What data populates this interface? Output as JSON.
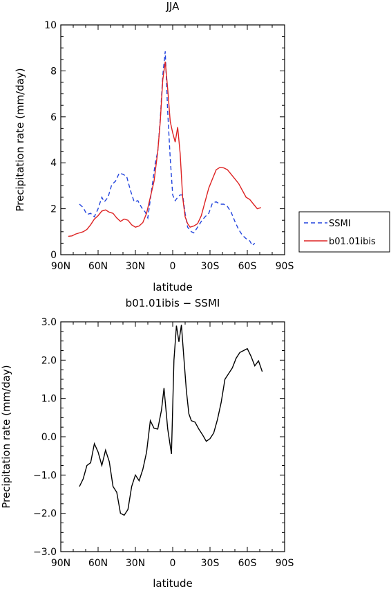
{
  "chart_data": [
    {
      "type": "line",
      "title": "JJA",
      "xlabel": "latitude",
      "ylabel": "Precipitation rate (mm/day)",
      "xlim": [
        90,
        -90
      ],
      "ylim": [
        0,
        10
      ],
      "xticks": [
        90,
        60,
        30,
        0,
        -30,
        -60,
        -90
      ],
      "xticklabels": [
        "90N",
        "60N",
        "30N",
        "0",
        "30S",
        "60S",
        "90S"
      ],
      "yticks": [
        0,
        2,
        4,
        6,
        8,
        10
      ],
      "yticklabels": [
        "0",
        "2",
        "4",
        "6",
        "8",
        "10"
      ],
      "grid": false,
      "legend": "right",
      "series": [
        {
          "name": "SSMI",
          "color": "#2244dd",
          "dash": "dashed",
          "points": [
            [
              75,
              2.2
            ],
            [
              72,
              2.05
            ],
            [
              69,
              1.75
            ],
            [
              66,
              1.8
            ],
            [
              63,
              1.65
            ],
            [
              60,
              2.0
            ],
            [
              57,
              2.5
            ],
            [
              55,
              2.3
            ],
            [
              52,
              2.5
            ],
            [
              49,
              3.05
            ],
            [
              46,
              3.2
            ],
            [
              43,
              3.55
            ],
            [
              40,
              3.5
            ],
            [
              37,
              3.4
            ],
            [
              34,
              2.8
            ],
            [
              31,
              2.3
            ],
            [
              28,
              2.35
            ],
            [
              25,
              2.05
            ],
            [
              22,
              1.85
            ],
            [
              20,
              1.6
            ],
            [
              17,
              2.8
            ],
            [
              14,
              4.0
            ],
            [
              12,
              4.5
            ],
            [
              10,
              5.9
            ],
            [
              8,
              7.8
            ],
            [
              6,
              8.85
            ],
            [
              4,
              6.2
            ],
            [
              2,
              4.2
            ],
            [
              0,
              2.6
            ],
            [
              -2,
              2.35
            ],
            [
              -4,
              2.5
            ],
            [
              -6,
              2.6
            ],
            [
              -8,
              2.6
            ],
            [
              -10,
              1.8
            ],
            [
              -12,
              1.2
            ],
            [
              -15,
              1.0
            ],
            [
              -17,
              0.95
            ],
            [
              -20,
              1.2
            ],
            [
              -23,
              1.45
            ],
            [
              -26,
              1.65
            ],
            [
              -29,
              1.8
            ],
            [
              -32,
              2.25
            ],
            [
              -35,
              2.3
            ],
            [
              -38,
              2.2
            ],
            [
              -41,
              2.2
            ],
            [
              -44,
              2.1
            ],
            [
              -47,
              1.85
            ],
            [
              -50,
              1.45
            ],
            [
              -53,
              1.1
            ],
            [
              -56,
              0.85
            ],
            [
              -59,
              0.7
            ],
            [
              -62,
              0.6
            ],
            [
              -64,
              0.4
            ],
            [
              -66,
              0.5
            ]
          ]
        },
        {
          "name": "b01.01ibis",
          "color": "#dd2222",
          "dash": "solid",
          "points": [
            [
              84,
              0.8
            ],
            [
              81,
              0.82
            ],
            [
              78,
              0.9
            ],
            [
              75,
              0.95
            ],
            [
              72,
              1.0
            ],
            [
              69,
              1.1
            ],
            [
              66,
              1.3
            ],
            [
              63,
              1.55
            ],
            [
              60,
              1.7
            ],
            [
              57,
              1.9
            ],
            [
              54,
              1.95
            ],
            [
              51,
              1.85
            ],
            [
              48,
              1.8
            ],
            [
              45,
              1.6
            ],
            [
              42,
              1.45
            ],
            [
              39,
              1.55
            ],
            [
              36,
              1.5
            ],
            [
              33,
              1.3
            ],
            [
              30,
              1.2
            ],
            [
              27,
              1.25
            ],
            [
              24,
              1.4
            ],
            [
              21,
              1.8
            ],
            [
              18,
              2.5
            ],
            [
              15,
              3.2
            ],
            [
              12,
              4.5
            ],
            [
              10,
              5.8
            ],
            [
              8,
              7.6
            ],
            [
              6,
              8.4
            ],
            [
              4,
              7.2
            ],
            [
              2,
              5.8
            ],
            [
              0,
              5.3
            ],
            [
              -2,
              4.9
            ],
            [
              -4,
              5.55
            ],
            [
              -6,
              4.4
            ],
            [
              -8,
              2.5
            ],
            [
              -10,
              1.65
            ],
            [
              -12,
              1.35
            ],
            [
              -14,
              1.2
            ],
            [
              -17,
              1.25
            ],
            [
              -20,
              1.35
            ],
            [
              -23,
              1.7
            ],
            [
              -26,
              2.3
            ],
            [
              -29,
              2.9
            ],
            [
              -32,
              3.3
            ],
            [
              -35,
              3.7
            ],
            [
              -38,
              3.8
            ],
            [
              -41,
              3.78
            ],
            [
              -44,
              3.7
            ],
            [
              -47,
              3.5
            ],
            [
              -50,
              3.3
            ],
            [
              -53,
              3.1
            ],
            [
              -56,
              2.8
            ],
            [
              -59,
              2.5
            ],
            [
              -62,
              2.4
            ],
            [
              -65,
              2.2
            ],
            [
              -68,
              2.0
            ],
            [
              -71,
              2.05
            ]
          ]
        }
      ]
    },
    {
      "type": "line",
      "title": "b01.01ibis − SSMI",
      "xlabel": "latitude",
      "ylabel": "Precipitation rate (mm/day)",
      "xlim": [
        90,
        -90
      ],
      "ylim": [
        -3,
        3
      ],
      "xticks": [
        90,
        60,
        30,
        0,
        -30,
        -60,
        -90
      ],
      "xticklabels": [
        "90N",
        "60N",
        "30N",
        "0",
        "30S",
        "60S",
        "90S"
      ],
      "yticks": [
        -3,
        -2,
        -1,
        0,
        1,
        2,
        3
      ],
      "yticklabels": [
        "−3.0",
        "−2.0",
        "−1.0",
        "0.0",
        "1.0",
        "2.0",
        "3.0"
      ],
      "grid": false,
      "series": [
        {
          "color": "#000000",
          "dash": "solid",
          "points": [
            [
              75,
              -1.3
            ],
            [
              72,
              -1.1
            ],
            [
              69,
              -0.75
            ],
            [
              66,
              -0.68
            ],
            [
              63,
              -0.18
            ],
            [
              60,
              -0.4
            ],
            [
              57,
              -0.75
            ],
            [
              54,
              -0.35
            ],
            [
              51,
              -0.65
            ],
            [
              48,
              -1.3
            ],
            [
              45,
              -1.45
            ],
            [
              42,
              -2.0
            ],
            [
              39,
              -2.05
            ],
            [
              36,
              -1.9
            ],
            [
              33,
              -1.3
            ],
            [
              30,
              -1.0
            ],
            [
              27,
              -1.15
            ],
            [
              24,
              -0.85
            ],
            [
              21,
              -0.4
            ],
            [
              18,
              0.42
            ],
            [
              15,
              0.22
            ],
            [
              12,
              0.2
            ],
            [
              9,
              0.7
            ],
            [
              7,
              1.27
            ],
            [
              4,
              0.2
            ],
            [
              1,
              -0.45
            ],
            [
              -1,
              2.0
            ],
            [
              -3,
              2.9
            ],
            [
              -5,
              2.48
            ],
            [
              -7,
              2.92
            ],
            [
              -9,
              2.05
            ],
            [
              -11,
              1.2
            ],
            [
              -13,
              0.6
            ],
            [
              -15,
              0.42
            ],
            [
              -18,
              0.38
            ],
            [
              -21,
              0.2
            ],
            [
              -24,
              0.05
            ],
            [
              -27,
              -0.12
            ],
            [
              -30,
              -0.05
            ],
            [
              -33,
              0.1
            ],
            [
              -36,
              0.45
            ],
            [
              -39,
              0.9
            ],
            [
              -42,
              1.5
            ],
            [
              -45,
              1.65
            ],
            [
              -48,
              1.8
            ],
            [
              -51,
              2.05
            ],
            [
              -54,
              2.2
            ],
            [
              -57,
              2.25
            ],
            [
              -60,
              2.3
            ],
            [
              -63,
              2.1
            ],
            [
              -66,
              1.85
            ],
            [
              -69,
              1.98
            ],
            [
              -72,
              1.7
            ]
          ]
        }
      ]
    }
  ]
}
